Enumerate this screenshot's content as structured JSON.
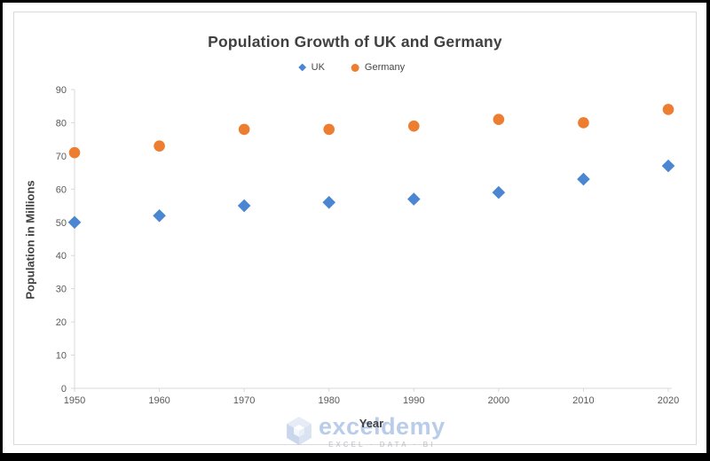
{
  "frame": {
    "outer_border_color": "#000000",
    "page_background": "#ffffff",
    "chart_border_color": "#d9d9d9",
    "axis_line_color": "#d9d9d9",
    "tick_label_color": "#595959",
    "title_color": "#404040"
  },
  "chart_data": {
    "type": "scatter",
    "title": "Population Growth of UK and Germany",
    "xlabel": "Year",
    "ylabel": "Population in Millions",
    "x": [
      1950,
      1960,
      1970,
      1980,
      1990,
      2000,
      2010,
      2020
    ],
    "series": [
      {
        "name": "UK",
        "marker": "diamond",
        "color": "#4a86d1",
        "values": [
          50,
          52,
          55,
          56,
          57,
          59,
          63,
          67
        ]
      },
      {
        "name": "Germany",
        "marker": "circle",
        "color": "#ed7d31",
        "values": [
          71,
          73,
          78,
          78,
          79,
          81,
          80,
          84
        ]
      }
    ],
    "xlim": [
      1950,
      2020
    ],
    "ylim": [
      0,
      90
    ],
    "x_ticks": [
      1950,
      1960,
      1970,
      1980,
      1990,
      2000,
      2010,
      2020
    ],
    "y_ticks": [
      0,
      10,
      20,
      30,
      40,
      50,
      60,
      70,
      80,
      90
    ],
    "grid": false,
    "legend_position": "top-center"
  },
  "watermark": {
    "brand": "exceldemy",
    "tagline": "EXCEL · DATA · BI",
    "logo": "isometric-cube-hexagon",
    "brand_color": "#8fadde",
    "tagline_color": "#b0b6be"
  }
}
